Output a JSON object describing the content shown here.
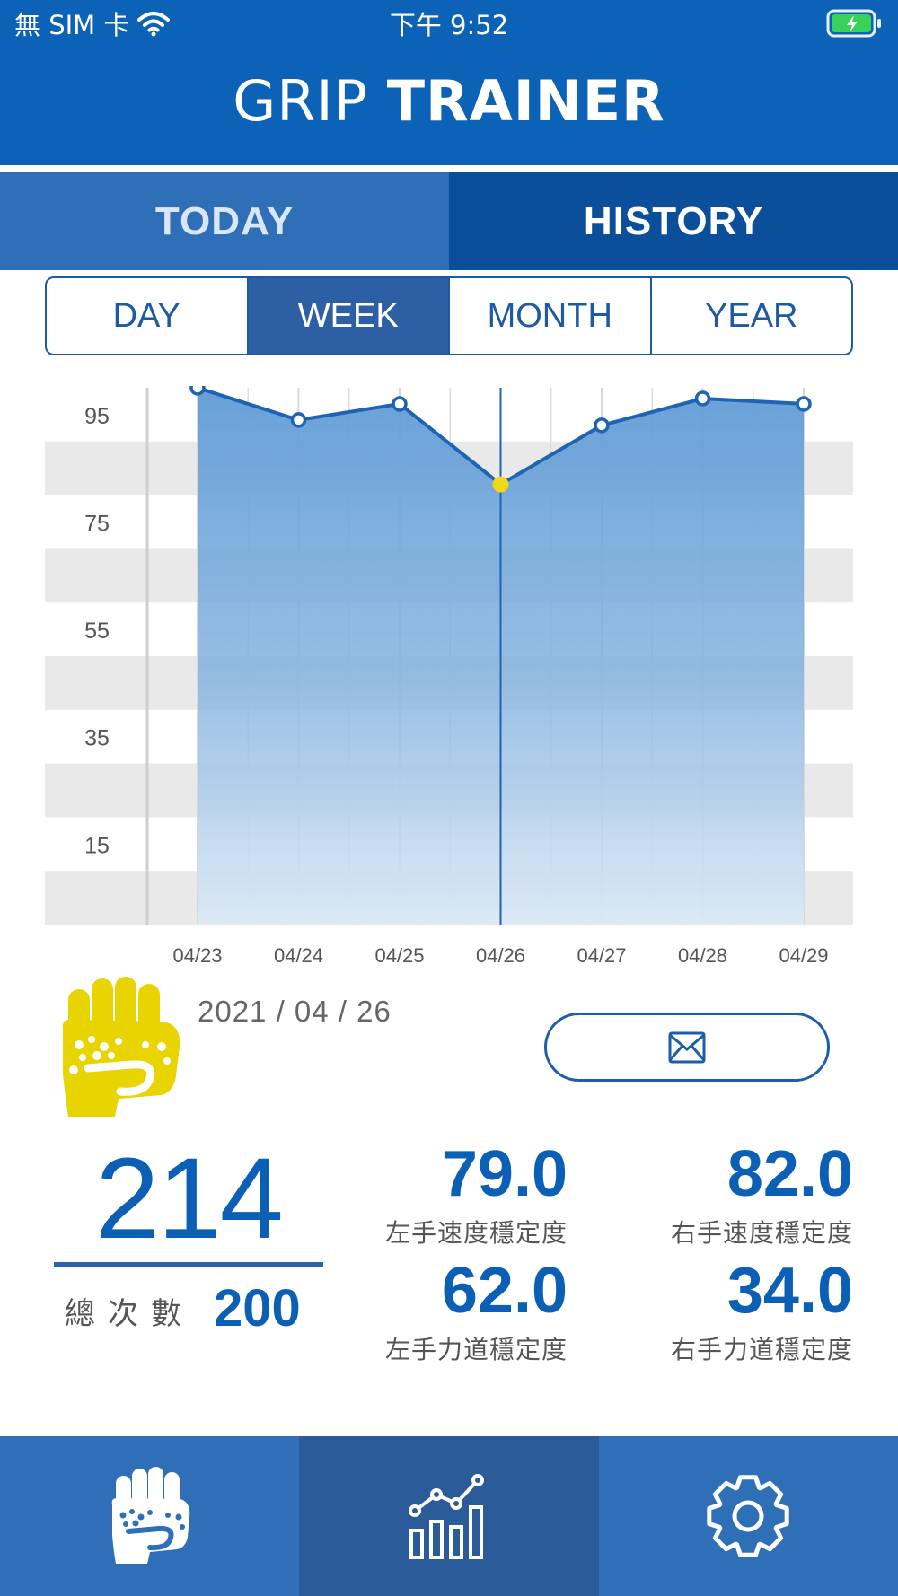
{
  "status_bar": {
    "carrier": "無 SIM 卡",
    "time": "下午 9:52"
  },
  "app": {
    "title_light": "GRIP",
    "title_bold": "TRAINER"
  },
  "main_tabs": [
    {
      "label": "TODAY",
      "active": false
    },
    {
      "label": "HISTORY",
      "active": true
    }
  ],
  "period_tabs": [
    {
      "label": "DAY",
      "active": false
    },
    {
      "label": "WEEK",
      "active": true
    },
    {
      "label": "MONTH",
      "active": false
    },
    {
      "label": "YEAR",
      "active": false
    }
  ],
  "chart_data": {
    "type": "area",
    "categories": [
      "04/23",
      "04/24",
      "04/25",
      "04/26",
      "04/27",
      "04/28",
      "04/29"
    ],
    "values": [
      100,
      94,
      97,
      82,
      93,
      98,
      97
    ],
    "y_ticks": [
      95,
      75,
      55,
      35,
      15
    ],
    "ylim": [
      0,
      100
    ],
    "selected_index": 3,
    "colors": {
      "line": "#1f63b3",
      "fill_top": "#5f9bd6",
      "highlight": "#f0d817",
      "band": "#e9e9e9"
    }
  },
  "details": {
    "date": "2021 / 04 / 26",
    "total_count": "214",
    "total_label": "總次數",
    "goal_count": "200",
    "metrics": {
      "left_speed": {
        "value": "79.0",
        "label": "左手速度穩定度"
      },
      "right_speed": {
        "value": "82.0",
        "label": "右手速度穩定度"
      },
      "left_force": {
        "value": "62.0",
        "label": "左手力道穩定度"
      },
      "right_force": {
        "value": "34.0",
        "label": "右手力道穩定度"
      }
    }
  },
  "icons": {
    "mail": "mail-icon",
    "nav": [
      "fist-icon",
      "chart-icon",
      "gear-icon"
    ]
  },
  "colors": {
    "primary": "#0b62b6",
    "tab_active": "#0b4f9a",
    "text_blue": "#0b5fb5",
    "logo_yellow": "#e8d400"
  }
}
